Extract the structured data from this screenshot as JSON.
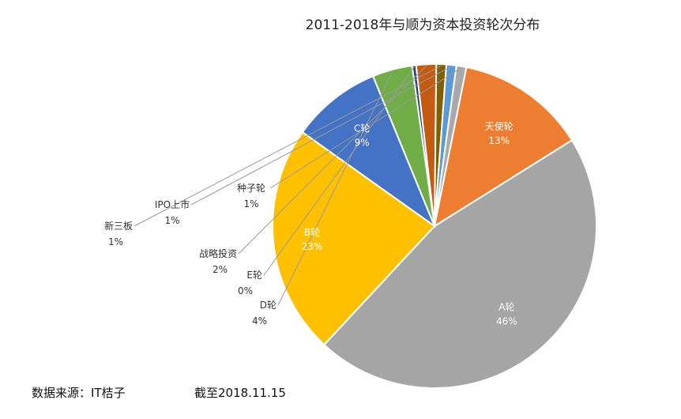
{
  "chart_data": {
    "type": "pie",
    "title": "2011-2018年与顺为资本投资轮次分布",
    "slices": [
      {
        "label": "A轮",
        "value": 46,
        "value_label": "46%",
        "color": "#A5A5A5"
      },
      {
        "label": "B轮",
        "value": 23,
        "value_label": "23%",
        "color": "#FFC000"
      },
      {
        "label": "C轮",
        "value": 9,
        "value_label": "9%",
        "color": "#4472C4"
      },
      {
        "label": "D轮",
        "value": 4,
        "value_label": "4%",
        "color": "#70AD47"
      },
      {
        "label": "E轮",
        "value": 0.4,
        "value_label": "0%",
        "color": "#264478"
      },
      {
        "label": "战略投资",
        "value": 2,
        "value_label": "2%",
        "color": "#C55A11"
      },
      {
        "label": "新三板",
        "value": 1,
        "value_label": "1%",
        "color": "#7F6000"
      },
      {
        "label": "IPO上市",
        "value": 1,
        "value_label": "1%",
        "color": "#5B9BD5"
      },
      {
        "label": "种子轮",
        "value": 1,
        "value_label": "1%",
        "color": "#A9A9A9"
      },
      {
        "label": "天使轮",
        "value": 13,
        "value_label": "13%",
        "color": "#ED7D31"
      }
    ]
  },
  "footer": {
    "source": "数据来源：IT桔子",
    "date": "截至2018.11.15"
  }
}
